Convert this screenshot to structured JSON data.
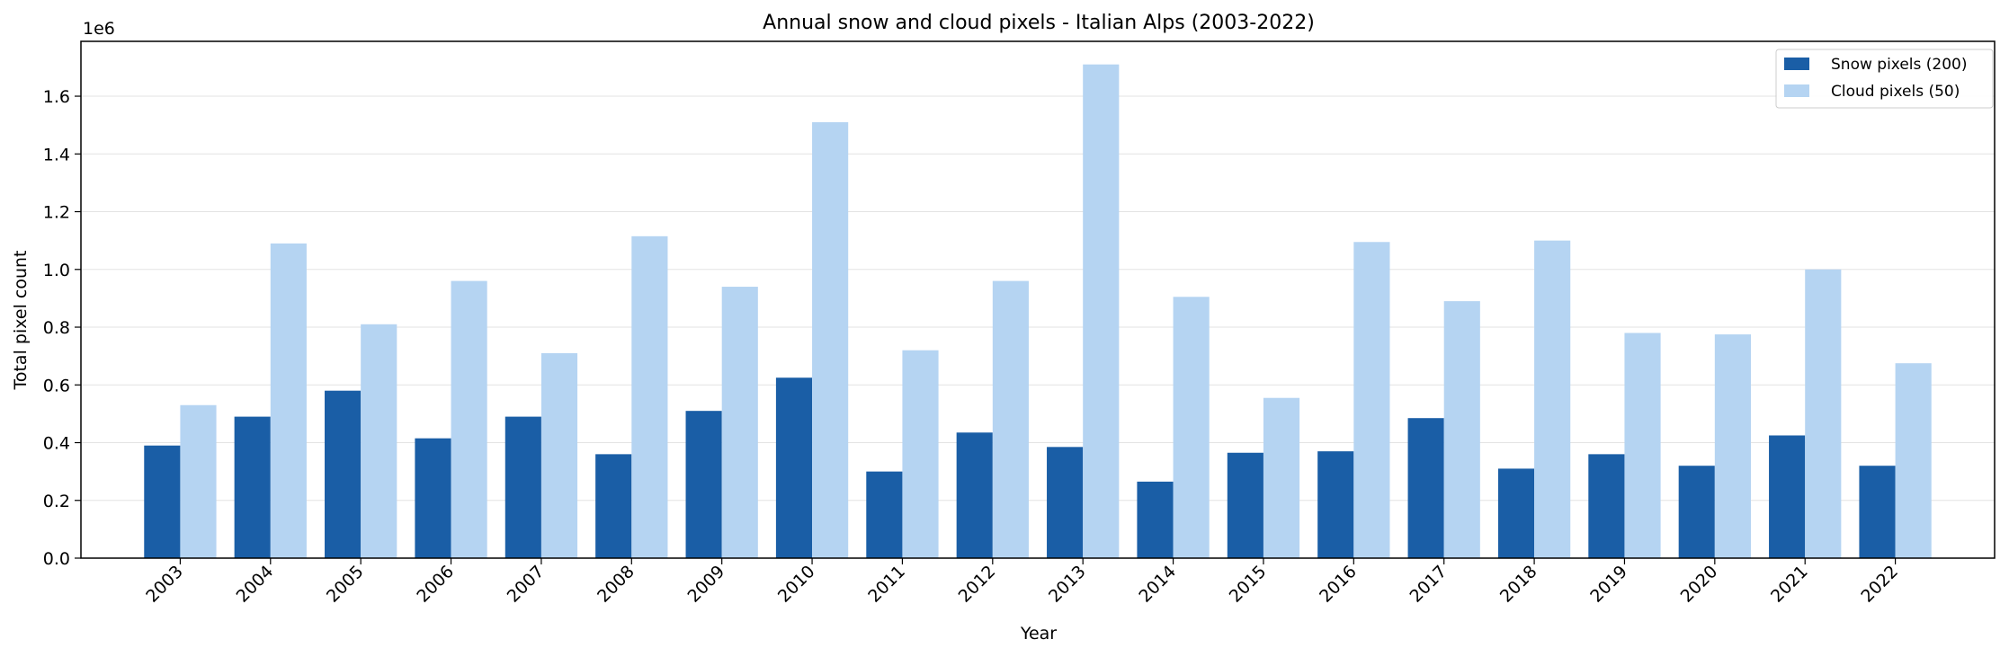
{
  "chart_data": {
    "type": "bar",
    "title": "Annual snow and cloud pixels - Italian Alps (2003-2022)",
    "xlabel": "Year",
    "ylabel": "Total pixel count",
    "y_offset_label": "1e6",
    "ylim": [
      0,
      1.79
    ],
    "y_ticks": [
      0.0,
      0.2,
      0.4,
      0.6,
      0.8,
      1.0,
      1.2,
      1.4,
      1.6
    ],
    "y_tick_labels": [
      "0.0",
      "0.2",
      "0.4",
      "0.6",
      "0.8",
      "1.0",
      "1.2",
      "1.4",
      "1.6"
    ],
    "grid": "horizontal",
    "legend_position": "top-right",
    "categories": [
      "2003",
      "2004",
      "2005",
      "2006",
      "2007",
      "2008",
      "2009",
      "2010",
      "2011",
      "2012",
      "2013",
      "2014",
      "2015",
      "2016",
      "2017",
      "2018",
      "2019",
      "2020",
      "2021",
      "2022"
    ],
    "series": [
      {
        "name": "Snow pixels (200)",
        "color": "#1a5ea6",
        "values": [
          0.39,
          0.49,
          0.58,
          0.415,
          0.49,
          0.36,
          0.51,
          0.625,
          0.3,
          0.435,
          0.385,
          0.265,
          0.365,
          0.37,
          0.485,
          0.31,
          0.36,
          0.32,
          0.425,
          0.32
        ]
      },
      {
        "name": "Cloud pixels (50)",
        "color": "#b5d4f2",
        "values": [
          0.53,
          1.09,
          0.81,
          0.96,
          0.71,
          1.115,
          0.94,
          1.51,
          0.72,
          0.96,
          1.71,
          0.905,
          0.555,
          1.095,
          0.89,
          1.1,
          0.78,
          0.775,
          1.0,
          0.675
        ]
      }
    ]
  }
}
